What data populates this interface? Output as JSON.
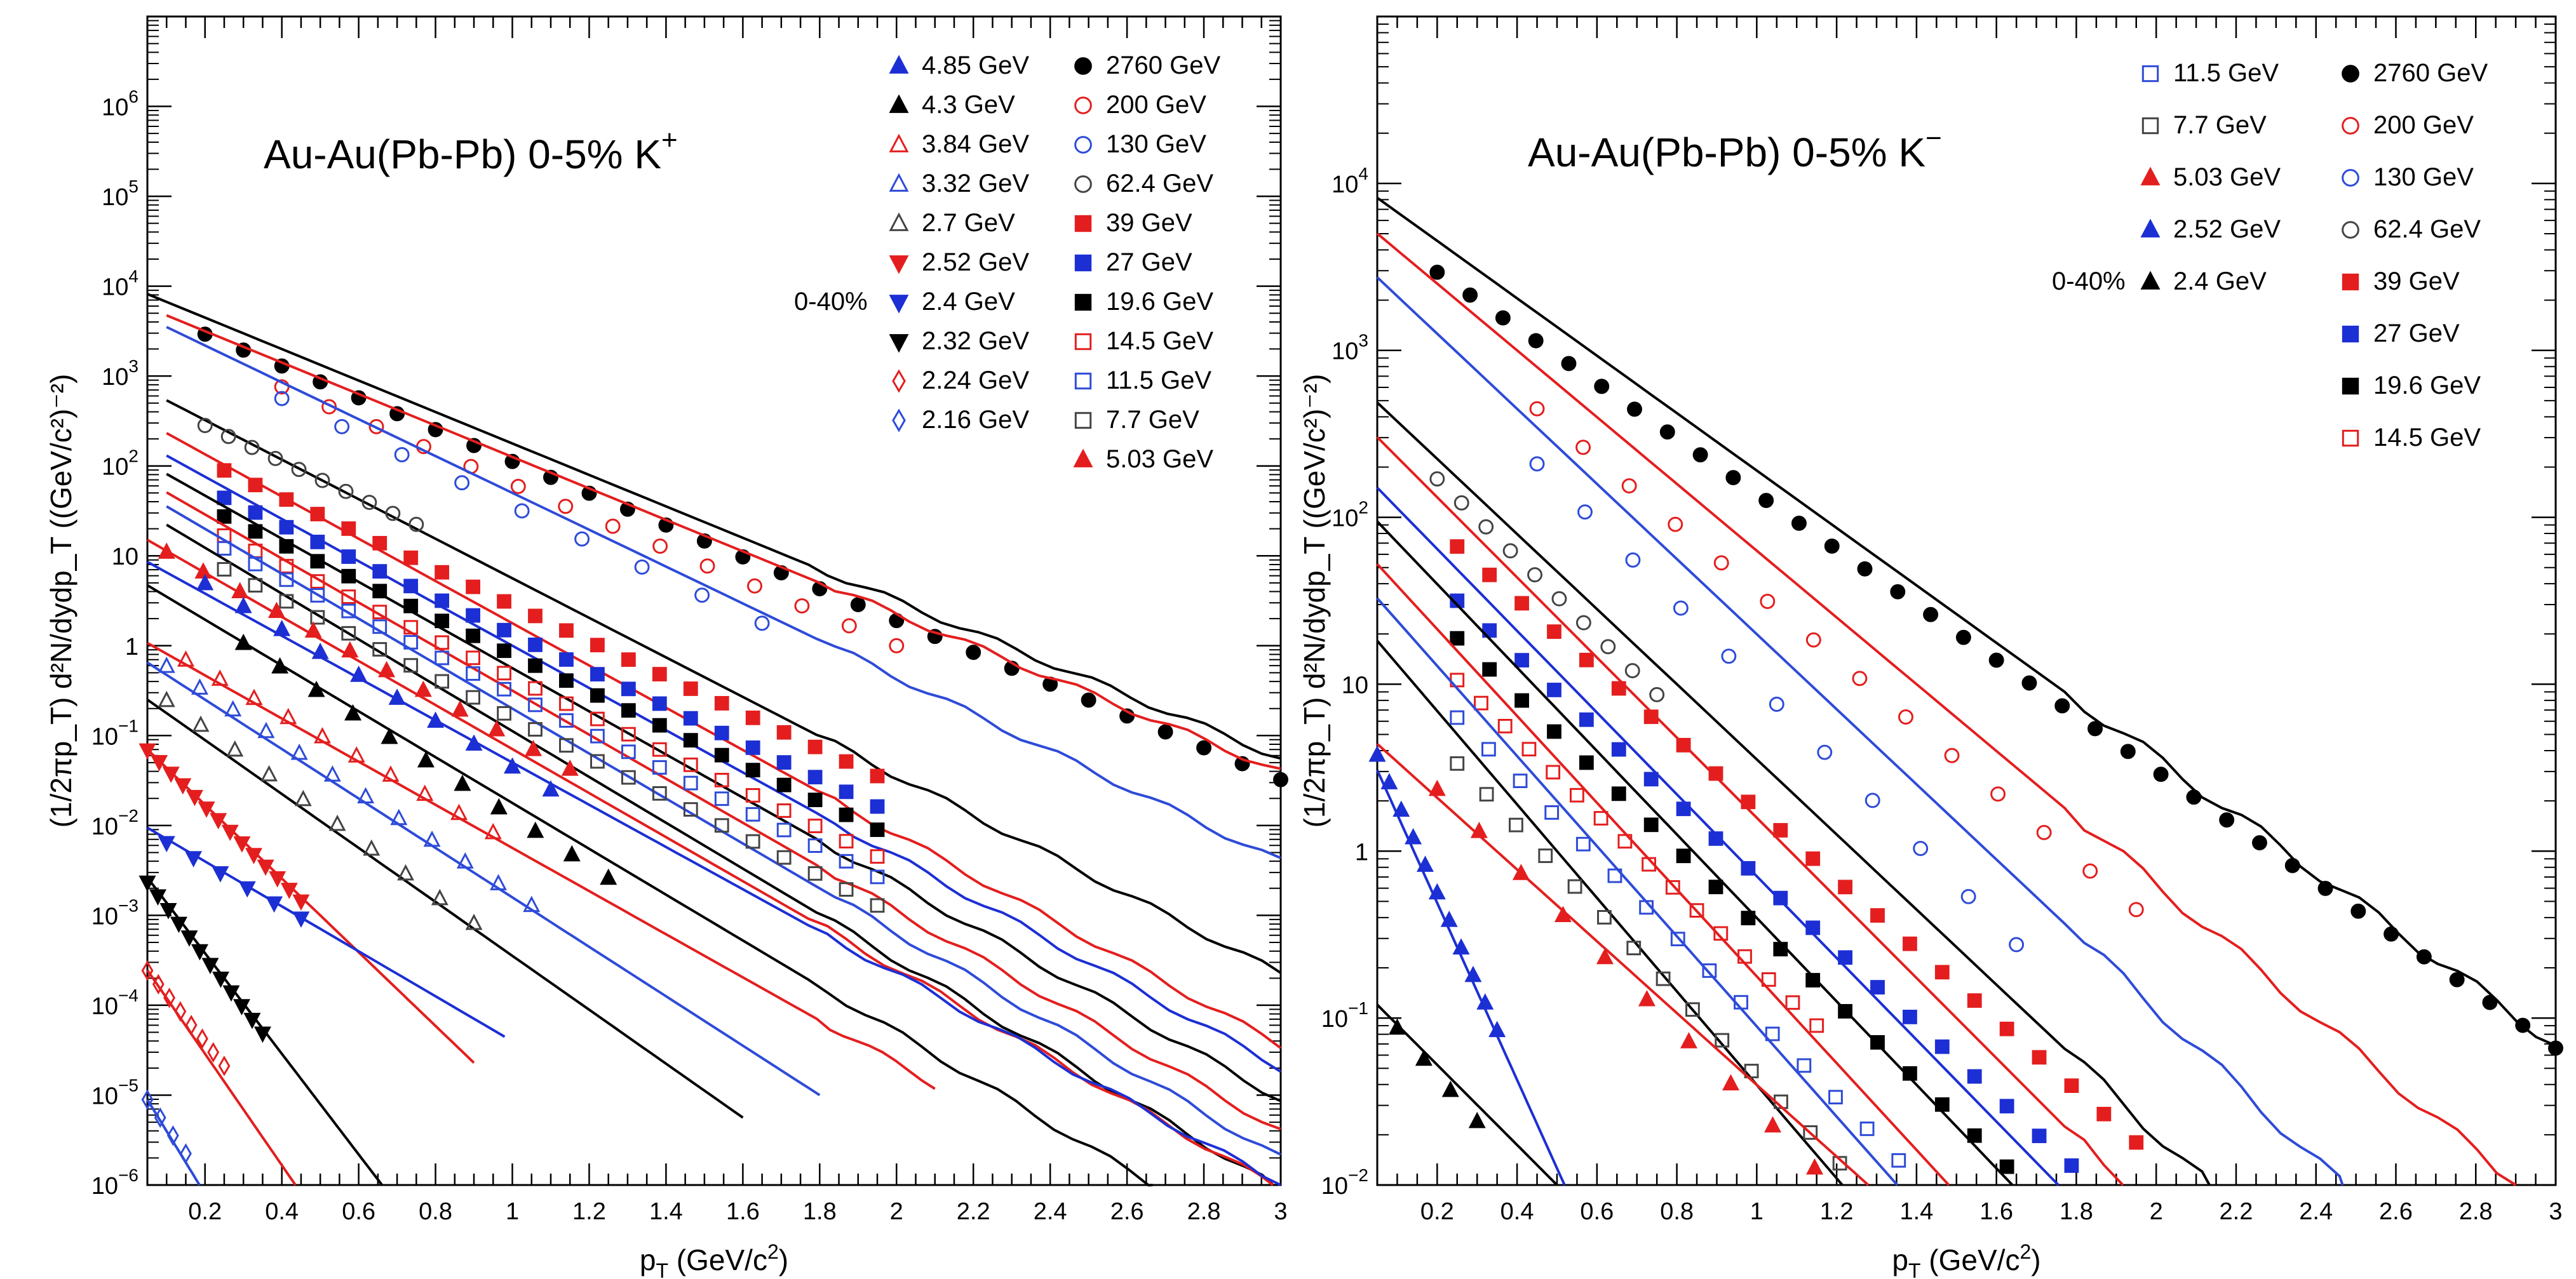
{
  "chart_data": [
    {
      "type": "scatter",
      "title": "Au-Au(Pb-Pb)  0-5%",
      "particle": "K",
      "charge": "+",
      "xlabel": "p_T (GeV/c^2)",
      "ylabel": "(1/2πp_T) d²N/dydp_T ((GeV/c²)⁻²)",
      "xlim": [
        0.05,
        3.0
      ],
      "ylim_log10": [
        -6,
        7
      ],
      "xticks": [
        "0.2",
        "0.4",
        "0.6",
        "0.8",
        "1",
        "1.2",
        "1.4",
        "1.6",
        "1.8",
        "2",
        "2.2",
        "2.4",
        "2.6",
        "2.8",
        "3"
      ],
      "yticks": [
        {
          "exp": 6,
          "label": "10",
          "sup": "6"
        },
        {
          "exp": 5,
          "label": "10",
          "sup": "5"
        },
        {
          "exp": 4,
          "label": "10",
          "sup": "4"
        },
        {
          "exp": 3,
          "label": "10",
          "sup": "3"
        },
        {
          "exp": 2,
          "label": "10",
          "sup": "2"
        },
        {
          "exp": 1,
          "label": "10",
          "sup": ""
        },
        {
          "exp": 0,
          "label": "1",
          "sup": ""
        },
        {
          "exp": -1,
          "label": "10",
          "sup": "−1"
        },
        {
          "exp": -2,
          "label": "10",
          "sup": "−2"
        },
        {
          "exp": -3,
          "label": "10",
          "sup": "−3"
        },
        {
          "exp": -4,
          "label": "10",
          "sup": "−4"
        },
        {
          "exp": -5,
          "label": "10",
          "sup": "−5"
        },
        {
          "exp": -6,
          "label": "10",
          "sup": "−6"
        }
      ],
      "legend_note": "0-40%",
      "legend_note_row": 7,
      "legend_cols": [
        [
          "4.85 GeV",
          "4.3 GeV",
          "3.84 GeV",
          "3.32 GeV",
          "2.7 GeV",
          "2.52 GeV",
          "2.4 GeV",
          "2.32 GeV",
          "2.24 GeV",
          "2.16 GeV"
        ],
        [
          "2760 GeV",
          "200 GeV",
          "130 GeV",
          "62.4 GeV",
          "39 GeV",
          "27 GeV",
          "19.6 GeV",
          "14.5 GeV",
          "11.5 GeV",
          "7.7 GeV",
          "5.03 GeV"
        ]
      ],
      "series": [
        {
          "name": "2760 GeV",
          "marker": "circle-filled",
          "color": "#000000",
          "a": 3.82,
          "b": 1.77,
          "xs": 0.2,
          "xe": 3.0,
          "n": 29,
          "model": {
            "a": 4.0,
            "b": 1.75,
            "xs": 0.05,
            "xe": 3.0
          }
        },
        {
          "name": "200 GeV",
          "marker": "circle-open",
          "color": "#e41e1e",
          "a": 3.6,
          "b": 1.8,
          "xs": 0.4,
          "xe": 2.0,
          "n": 14,
          "model": {
            "a": 3.85,
            "b": 1.75,
            "xs": 0.1,
            "xe": 3.0
          }
        },
        {
          "name": "130 GeV",
          "marker": "circle-open",
          "color": "#2e4bd8",
          "a": 3.55,
          "b": 2.0,
          "xs": 0.4,
          "xe": 1.65,
          "n": 9,
          "model": {
            "a": 3.75,
            "b": 2.05,
            "xs": 0.1,
            "xe": 3.0
          }
        },
        {
          "name": "62.4 GeV",
          "marker": "circle-open",
          "color": "#444444",
          "a": 2.85,
          "b": 2.0,
          "xs": 0.2,
          "xe": 0.75,
          "n": 10,
          "model": {
            "a": 2.95,
            "b": 2.2,
            "xs": 0.1,
            "xe": 3.0
          }
        },
        {
          "name": "39 GeV",
          "marker": "square-filled",
          "color": "#e41e1e",
          "a": 2.45,
          "b": 2.0,
          "xs": 0.25,
          "xe": 1.95,
          "n": 22,
          "model": {
            "a": 2.6,
            "b": 2.35,
            "xs": 0.1,
            "xe": 3.0
          }
        },
        {
          "name": "27 GeV",
          "marker": "square-filled",
          "color": "#1c2fd4",
          "a": 2.15,
          "b": 2.02,
          "xs": 0.25,
          "xe": 1.95,
          "n": 22,
          "model": {
            "a": 2.35,
            "b": 2.35,
            "xs": 0.1,
            "xe": 3.0
          }
        },
        {
          "name": "19.6 GeV",
          "marker": "square-filled",
          "color": "#000000",
          "a": 1.95,
          "b": 2.05,
          "xs": 0.25,
          "xe": 1.95,
          "n": 22,
          "model": {
            "a": 2.15,
            "b": 2.4,
            "xs": 0.1,
            "xe": 3.0
          }
        },
        {
          "name": "14.5 GeV",
          "marker": "square-open",
          "color": "#e41e1e",
          "a": 1.75,
          "b": 2.1,
          "xs": 0.25,
          "xe": 1.95,
          "n": 22,
          "model": {
            "a": 1.95,
            "b": 2.45,
            "xs": 0.1,
            "xe": 3.0
          }
        },
        {
          "name": "11.5 GeV",
          "marker": "square-open",
          "color": "#2e4bd8",
          "a": 1.62,
          "b": 2.15,
          "xs": 0.25,
          "xe": 1.95,
          "n": 22,
          "model": {
            "a": 1.8,
            "b": 2.5,
            "xs": 0.1,
            "xe": 3.0
          }
        },
        {
          "name": "7.7 GeV",
          "marker": "square-open",
          "color": "#444444",
          "a": 1.4,
          "b": 2.2,
          "xs": 0.25,
          "xe": 1.95,
          "n": 22,
          "model": {
            "a": 1.6,
            "b": 2.55,
            "xs": 0.1,
            "xe": 3.0
          }
        },
        {
          "name": "5.03 GeV",
          "marker": "triangle-up-filled",
          "color": "#e41e1e",
          "a": 1.27,
          "b": 2.3,
          "xs": 0.1,
          "xe": 1.15,
          "n": 12,
          "model": {
            "a": 1.3,
            "b": 2.45,
            "xs": 0.05,
            "xe": 3.0
          }
        },
        {
          "name": "4.85 GeV",
          "marker": "triangle-up-filled",
          "color": "#1c2fd4",
          "a": 1.2,
          "b": 2.55,
          "xs": 0.2,
          "xe": 1.1,
          "n": 10,
          "model": {
            "a": 1.05,
            "b": 2.35,
            "xs": 0.05,
            "xe": 3.0
          }
        },
        {
          "name": "4.3 GeV",
          "marker": "triangle-up-filled",
          "color": "#000000",
          "a": 0.85,
          "b": 2.75,
          "xs": 0.3,
          "xe": 1.25,
          "n": 11,
          "model": {
            "a": 0.8,
            "b": 2.55,
            "xs": 0.05,
            "xe": 3.0
          }
        },
        {
          "name": "3.84 GeV",
          "marker": "triangle-up-open",
          "color": "#e41e1e",
          "a": 0.2,
          "b": 2.4,
          "xs": 0.15,
          "xe": 0.95,
          "n": 10,
          "model": {
            "a": 0.15,
            "b": 2.4,
            "xs": 0.05,
            "xe": 2.1
          }
        },
        {
          "name": "3.32 GeV",
          "marker": "triangle-up-open",
          "color": "#2e4bd8",
          "a": 0.05,
          "b": 2.8,
          "xs": 0.1,
          "xe": 1.05,
          "n": 12,
          "model": {
            "a": -0.05,
            "b": 2.75,
            "xs": 0.05,
            "xe": 1.8
          }
        },
        {
          "name": "2.7 GeV",
          "marker": "triangle-up-open",
          "color": "#444444",
          "a": -0.3,
          "b": 3.1,
          "xs": 0.1,
          "xe": 0.9,
          "n": 10,
          "model": {
            "a": -0.45,
            "b": 3.0,
            "xs": 0.05,
            "xe": 1.6
          }
        },
        {
          "name": "2.52 GeV",
          "marker": "triangle-down-filled",
          "color": "#e41e1e",
          "a": -0.95,
          "b": 4.2,
          "xs": 0.05,
          "xe": 0.45,
          "n": 14,
          "model": {
            "a": -0.95,
            "b": 4.1,
            "xs": 0.05,
            "xe": 0.9
          }
        },
        {
          "name": "2.4 GeV",
          "marker": "triangle-down-filled",
          "color": "#1c2fd4",
          "a": -1.95,
          "b": 2.4,
          "xs": 0.1,
          "xe": 0.45,
          "n": 6,
          "model": {
            "a": -1.9,
            "b": 2.5,
            "xs": 0.05,
            "xe": 0.98
          }
        },
        {
          "name": "2.32 GeV",
          "marker": "triangle-down-filled",
          "color": "#000000",
          "a": -2.35,
          "b": 5.6,
          "xs": 0.05,
          "xe": 0.35,
          "n": 12,
          "model": {
            "a": -2.3,
            "b": 5.6,
            "xs": 0.05,
            "xe": 0.72
          }
        },
        {
          "name": "2.24 GeV",
          "marker": "diamond-open",
          "color": "#e41e1e",
          "a": -3.35,
          "b": 5.3,
          "xs": 0.05,
          "xe": 0.25,
          "n": 8,
          "model": {
            "a": -3.3,
            "b": 6.2,
            "xs": 0.05,
            "xe": 0.48
          }
        },
        {
          "name": "2.16 GeV",
          "marker": "diamond-open",
          "color": "#2e4bd8",
          "a": -4.75,
          "b": 6.0,
          "xs": 0.05,
          "xe": 0.15,
          "n": 4,
          "model": {
            "a": -4.7,
            "b": 7.0,
            "xs": 0.05,
            "xe": 0.22
          }
        }
      ]
    },
    {
      "type": "scatter",
      "title": "Au-Au(Pb-Pb)  0-5%",
      "particle": "K",
      "charge": "−",
      "xlabel": "p_T (GeV/c^2)",
      "ylabel": "(1/2πp_T) d²N/dydp_T ((GeV/c²)⁻²)",
      "xlim": [
        0.05,
        3.0
      ],
      "ylim_log10": [
        -2,
        5
      ],
      "xticks": [
        "0.2",
        "0.4",
        "0.6",
        "0.8",
        "1",
        "1.2",
        "1.4",
        "1.6",
        "1.8",
        "2",
        "2.2",
        "2.4",
        "2.6",
        "2.8",
        "3"
      ],
      "yticks": [
        {
          "exp": 4,
          "label": "10",
          "sup": "4"
        },
        {
          "exp": 3,
          "label": "10",
          "sup": "3"
        },
        {
          "exp": 2,
          "label": "10",
          "sup": "2"
        },
        {
          "exp": 1,
          "label": "10",
          "sup": ""
        },
        {
          "exp": 0,
          "label": "1",
          "sup": ""
        },
        {
          "exp": -1,
          "label": "10",
          "sup": "−1"
        },
        {
          "exp": -2,
          "label": "10",
          "sup": "−2"
        }
      ],
      "legend_note": "0-40%",
      "legend_note_row": 5,
      "legend_cols": [
        [
          "11.5 GeV",
          "7.7 GeV",
          "5.03 GeV",
          "2.52 GeV",
          "2.4 GeV"
        ],
        [
          "2760 GeV",
          "200 GeV",
          "130 GeV",
          "62.4 GeV",
          "39 GeV",
          "27 GeV",
          "19.6 GeV",
          "14.5 GeV"
        ]
      ],
      "series": [
        {
          "name": "2760 GeV",
          "marker": "circle-filled",
          "color": "#000000",
          "a": 3.8,
          "b": 1.66,
          "xs": 0.2,
          "xe": 3.0,
          "n": 35,
          "model": {
            "a": 4.0,
            "b": 1.72,
            "xs": 0.05,
            "xe": 3.0
          }
        },
        {
          "name": "200 GeV",
          "marker": "circle-open",
          "color": "#e41e1e",
          "a": 3.55,
          "b": 2.0,
          "xs": 0.45,
          "xe": 1.95,
          "n": 14,
          "model": {
            "a": 3.8,
            "b": 2.0,
            "xs": 0.05,
            "xe": 3.0
          }
        },
        {
          "name": "130 GeV",
          "marker": "circle-open",
          "color": "#2e4bd8",
          "a": 3.4,
          "b": 2.4,
          "xs": 0.45,
          "xe": 1.65,
          "n": 11,
          "model": {
            "a": 3.55,
            "b": 2.25,
            "xs": 0.05,
            "xe": 3.0
          }
        },
        {
          "name": "62.4 GeV",
          "marker": "circle-open",
          "color": "#444444",
          "a": 2.7,
          "b": 2.35,
          "xs": 0.2,
          "xe": 0.75,
          "n": 10,
          "model": {
            "a": 2.8,
            "b": 2.25,
            "xs": 0.05,
            "xe": 3.0
          }
        },
        {
          "name": "39 GeV",
          "marker": "square-filled",
          "color": "#e41e1e",
          "a": 2.35,
          "b": 2.1,
          "xs": 0.25,
          "xe": 1.95,
          "n": 22,
          "model": {
            "a": 2.6,
            "b": 2.4,
            "xs": 0.05,
            "xe": 3.0
          }
        },
        {
          "name": "27 GeV",
          "marker": "square-filled",
          "color": "#1c2fd4",
          "a": 2.05,
          "b": 2.2,
          "xs": 0.25,
          "xe": 1.95,
          "n": 22,
          "model": {
            "a": 2.3,
            "b": 2.45,
            "xs": 0.05,
            "xe": 3.0
          }
        },
        {
          "name": "19.6 GeV",
          "marker": "square-filled",
          "color": "#000000",
          "a": 1.85,
          "b": 2.3,
          "xs": 0.25,
          "xe": 1.95,
          "n": 22,
          "model": {
            "a": 2.1,
            "b": 2.5,
            "xs": 0.05,
            "xe": 3.0
          }
        },
        {
          "name": "14.5 GeV",
          "marker": "square-open",
          "color": "#e41e1e",
          "a": 1.6,
          "b": 2.3,
          "xs": 0.25,
          "xe": 1.15,
          "n": 16,
          "model": {
            "a": 1.85,
            "b": 2.6,
            "xs": 0.05,
            "xe": 2.6
          }
        },
        {
          "name": "11.5 GeV",
          "marker": "square-open",
          "color": "#2e4bd8",
          "a": 1.4,
          "b": 2.4,
          "xs": 0.25,
          "xe": 1.75,
          "n": 20,
          "model": {
            "a": 1.65,
            "b": 2.7,
            "xs": 0.05,
            "xe": 2.5
          }
        },
        {
          "name": "7.7 GeV",
          "marker": "square-open",
          "color": "#444444",
          "a": 1.15,
          "b": 2.5,
          "xs": 0.25,
          "xe": 1.65,
          "n": 20,
          "model": {
            "a": 1.4,
            "b": 2.8,
            "xs": 0.05,
            "xe": 1.9
          }
        },
        {
          "name": "5.03 GeV",
          "marker": "triangle-up-filled",
          "color": "#e41e1e",
          "a": 0.85,
          "b": 2.4,
          "xs": 0.2,
          "xe": 1.25,
          "n": 11,
          "model": {
            "a": 0.75,
            "b": 2.15,
            "xs": 0.05,
            "xe": 1.4
          }
        },
        {
          "name": "2.52 GeV",
          "marker": "triangle-up-filled",
          "color": "#1c2fd4",
          "a": 0.85,
          "b": 5.5,
          "xs": 0.05,
          "xe": 0.35,
          "n": 11,
          "model": {
            "a": 0.75,
            "b": 5.3,
            "xs": 0.05,
            "xe": 0.6
          }
        },
        {
          "name": "2.4 GeV",
          "marker": "triangle-up-filled",
          "color": "#000000",
          "a": -0.78,
          "b": 2.8,
          "xs": 0.1,
          "xe": 0.3,
          "n": 4,
          "model": {
            "a": -0.8,
            "b": 2.4,
            "xs": 0.05,
            "xe": 0.6
          }
        }
      ]
    }
  ]
}
